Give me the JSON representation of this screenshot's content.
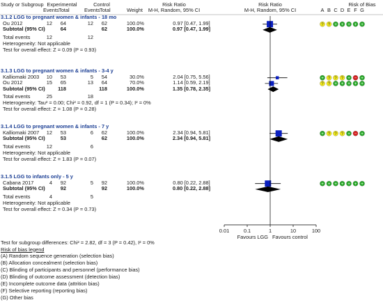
{
  "colors": {
    "line": "#000000",
    "box": "#0a1fbf",
    "text_blue": "#1c3f94",
    "green": "#27a827",
    "yellow": "#f2ea18",
    "dkgreen": "#1a7a1a",
    "red": "#d42020"
  },
  "header": {
    "study": "Study or Subgroup",
    "experimental": "Experimental",
    "control": "Control",
    "events": "Events",
    "total": "Total",
    "weight": "Weight",
    "rr": "Risk Ratio",
    "rr_method": "M-H, Random, 95% CI",
    "rr2": "Risk Ratio",
    "rr2_method": "M-H, Random, 95% CI",
    "rob": "Risk of Bias",
    "rob_letters": [
      "A",
      "B",
      "C",
      "D",
      "E",
      "F",
      "G"
    ]
  },
  "subgroups": [
    {
      "title": "3.1.2 LGG to pregnant women & infants - 18 mo",
      "studies": [
        {
          "name": "Ou 2012",
          "e_ev": "12",
          "e_tot": "64",
          "c_ev": "12",
          "c_tot": "62",
          "weight": "100.0%",
          "ci": "0.97 [0.47, 1.99]",
          "rr": 0.97,
          "lo": 0.47,
          "hi": 1.99,
          "w": 100,
          "rob": [
            "yellow",
            "yellow",
            "green",
            "green",
            "green",
            "green",
            "green"
          ]
        }
      ],
      "subtotal": {
        "label": "Subtotal (95% CI)",
        "e_tot": "64",
        "c_tot": "62",
        "weight": "100.0%",
        "ci": "0.97 [0.47, 1.99]",
        "rr": 0.97,
        "lo": 0.47,
        "hi": 1.99
      },
      "total_events": {
        "label": "Total events",
        "e": "12",
        "c": "12"
      },
      "heterogeneity": "Heterogeneity: Not applicable",
      "overall": "Test for overall effect: Z = 0.09 (P = 0.93)"
    },
    {
      "title": "3.1.3 LGG to pregnant women & infants - 3-4 y",
      "studies": [
        {
          "name": "Kalliomaki 2003",
          "e_ev": "10",
          "e_tot": "53",
          "c_ev": "5",
          "c_tot": "54",
          "weight": "30.0%",
          "ci": "2.04 [0.75, 5.56]",
          "rr": 2.04,
          "lo": 0.75,
          "hi": 5.56,
          "w": 30,
          "rob": [
            "green",
            "yellow",
            "yellow",
            "yellow",
            "green",
            "red",
            "green"
          ]
        },
        {
          "name": "Ou 2012",
          "e_ev": "15",
          "e_tot": "65",
          "c_ev": "13",
          "c_tot": "64",
          "weight": "70.0%",
          "ci": "1.14 [0.59, 2.19]",
          "rr": 1.14,
          "lo": 0.59,
          "hi": 2.19,
          "w": 70,
          "rob": [
            "yellow",
            "yellow",
            "green",
            "green",
            "green",
            "green",
            "green"
          ]
        }
      ],
      "subtotal": {
        "label": "Subtotal (95% CI)",
        "e_tot": "118",
        "c_tot": "118",
        "weight": "100.0%",
        "ci": "1.35 [0.78, 2.35]",
        "rr": 1.35,
        "lo": 0.78,
        "hi": 2.35
      },
      "total_events": {
        "label": "Total events",
        "e": "25",
        "c": "18"
      },
      "heterogeneity": "Heterogeneity: Tau² = 0.00; Chi² = 0.92, df = 1 (P = 0.34); I² = 0%",
      "overall": "Test for overall effect: Z = 1.08 (P = 0.28)"
    },
    {
      "title": "3.1.4 LGG to pregnant women & infants - 7 y",
      "studies": [
        {
          "name": "Kalliomaki 2007",
          "e_ev": "12",
          "e_tot": "53",
          "c_ev": "6",
          "c_tot": "62",
          "weight": "100.0%",
          "ci": "2.34 [0.94, 5.81]",
          "rr": 2.34,
          "lo": 0.94,
          "hi": 5.81,
          "w": 100,
          "rob": [
            "green",
            "yellow",
            "yellow",
            "yellow",
            "green",
            "red",
            "green"
          ]
        }
      ],
      "subtotal": {
        "label": "Subtotal (95% CI)",
        "e_tot": "53",
        "c_tot": "62",
        "weight": "100.0%",
        "ci": "2.34 [0.94, 5.81]",
        "rr": 2.34,
        "lo": 0.94,
        "hi": 5.81
      },
      "total_events": {
        "label": "Total events",
        "e": "12",
        "c": "6"
      },
      "heterogeneity": "Heterogeneity: Not applicable",
      "overall": "Test for overall effect: Z = 1.83 (P = 0.07)"
    },
    {
      "title": "3.1.5 LGG to infants only - 5 y",
      "studies": [
        {
          "name": "Cabana 2017",
          "e_ev": "4",
          "e_tot": "92",
          "c_ev": "5",
          "c_tot": "92",
          "weight": "100.0%",
          "ci": "0.80 [0.22, 2.88]",
          "rr": 0.8,
          "lo": 0.22,
          "hi": 2.88,
          "w": 100,
          "rob": [
            "green",
            "green",
            "green",
            "green",
            "green",
            "green",
            "green"
          ]
        }
      ],
      "subtotal": {
        "label": "Subtotal (95% CI)",
        "e_tot": "92",
        "c_tot": "92",
        "weight": "100.0%",
        "ci": "0.80 [0.22, 2.88]",
        "rr": 0.8,
        "lo": 0.22,
        "hi": 2.88
      },
      "total_events": {
        "label": "Total events",
        "e": "4",
        "c": "5"
      },
      "heterogeneity": "Heterogeneity: Not applicable",
      "overall": "Test for overall effect: Z = 0.34 (P = 0.73)"
    }
  ],
  "axis": {
    "ticks": [
      "0.01",
      "0.1",
      "1",
      "10",
      "100"
    ],
    "tick_values": [
      0.01,
      0.1,
      1,
      10,
      100
    ],
    "left_label": "Favours LGG",
    "right_label": "Favours control"
  },
  "footer": {
    "subgroup_test": "Test for subgroup differences: Chi² = 2.82, df = 3 (P = 0.42), I² = 0%",
    "legend_title": "Risk of bias legend",
    "legend": [
      "(A) Random sequence generation (selection bias)",
      "(B) Allocation concealment (selection bias)",
      "(C) Blinding of participants and personnel (performance bias)",
      "(D) Blinding of outcome assessment (detection bias)",
      "(E) Incomplete outcome data (attrition bias)",
      "(F) Selective reporting (reporting bias)",
      "(G) Other bias"
    ]
  },
  "chart_data": {
    "type": "forest",
    "scale": "log",
    "xlim": [
      0.01,
      100
    ],
    "reference_line": 1,
    "x_ticks": [
      0.01,
      0.1,
      1,
      10,
      100
    ],
    "left_label": "Favours LGG",
    "right_label": "Favours control",
    "series": [
      {
        "name": "Ou 2012",
        "subgroup": "3.1.2 LGG to pregnant women & infants - 18 mo",
        "rr": 0.97,
        "ci": [
          0.47,
          1.99
        ],
        "weight": 100.0
      },
      {
        "name": "Subtotal (95% CI)",
        "subgroup": "3.1.2 LGG to pregnant women & infants - 18 mo",
        "rr": 0.97,
        "ci": [
          0.47,
          1.99
        ],
        "weight": 100.0
      },
      {
        "name": "Kalliomaki 2003",
        "subgroup": "3.1.3 LGG to pregnant women & infants - 3-4 y",
        "rr": 2.04,
        "ci": [
          0.75,
          5.56
        ],
        "weight": 30.0
      },
      {
        "name": "Ou 2012",
        "subgroup": "3.1.3 LGG to pregnant women & infants - 3-4 y",
        "rr": 1.14,
        "ci": [
          0.59,
          2.19
        ],
        "weight": 70.0
      },
      {
        "name": "Subtotal (95% CI)",
        "subgroup": "3.1.3 LGG to pregnant women & infants - 3-4 y",
        "rr": 1.35,
        "ci": [
          0.78,
          2.35
        ],
        "weight": 100.0
      },
      {
        "name": "Kalliomaki 2007",
        "subgroup": "3.1.4 LGG to pregnant women & infants - 7 y",
        "rr": 2.34,
        "ci": [
          0.94,
          5.81
        ],
        "weight": 100.0
      },
      {
        "name": "Subtotal (95% CI)",
        "subgroup": "3.1.4 LGG to pregnant women & infants - 7 y",
        "rr": 2.34,
        "ci": [
          0.94,
          5.81
        ],
        "weight": 100.0
      },
      {
        "name": "Cabana 2017",
        "subgroup": "3.1.5 LGG to infants only - 5 y",
        "rr": 0.8,
        "ci": [
          0.22,
          2.88
        ],
        "weight": 100.0
      },
      {
        "name": "Subtotal (95% CI)",
        "subgroup": "3.1.5 LGG to infants only - 5 y",
        "rr": 0.8,
        "ci": [
          0.22,
          2.88
        ],
        "weight": 100.0
      }
    ]
  }
}
